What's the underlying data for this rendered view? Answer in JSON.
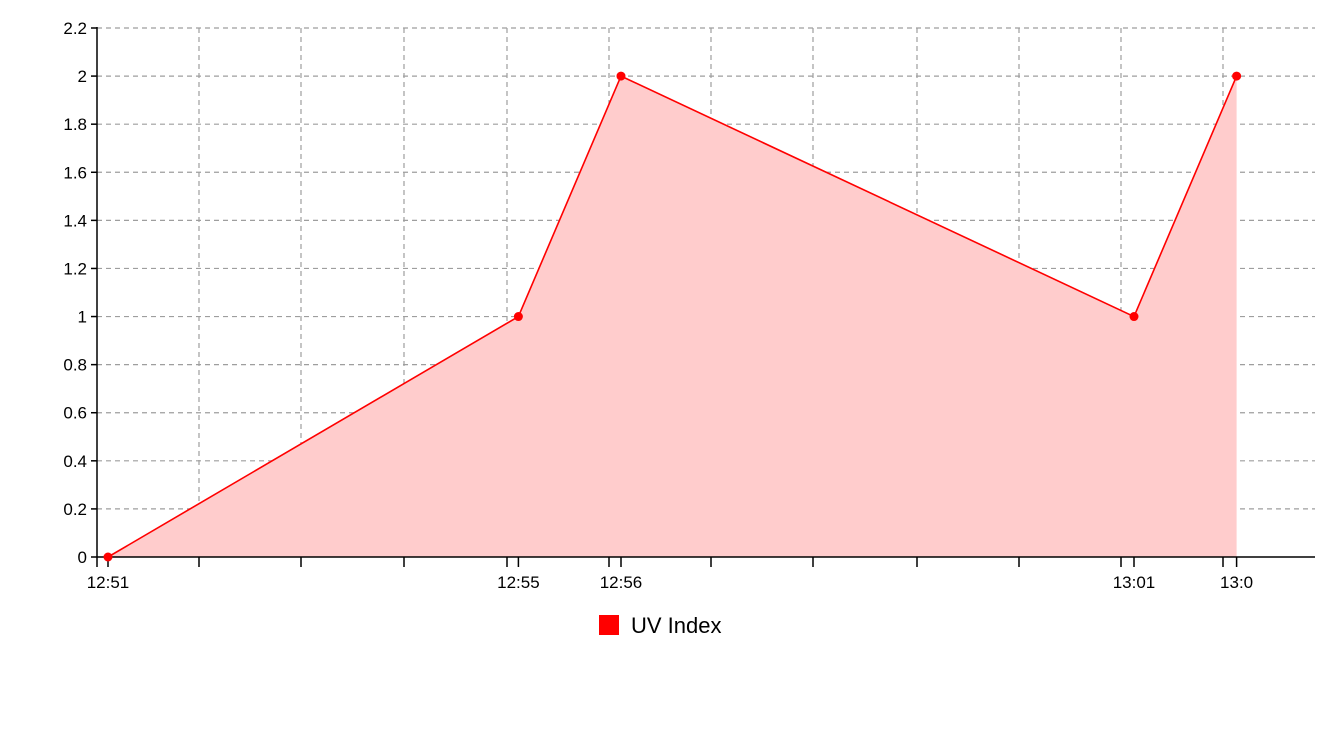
{
  "chart_data": {
    "type": "area",
    "x": [
      "12:51",
      "12:55",
      "12:56",
      "13:01",
      "13:0"
    ],
    "series": [
      {
        "name": "UV Index",
        "color": "#ff0000",
        "fill": "#ffcccc",
        "values": [
          0,
          1,
          2,
          1,
          2
        ]
      }
    ],
    "x_tick_labels": [
      "12:51",
      "12:55",
      "12:56",
      "13:01",
      "13:0"
    ],
    "y_tick_labels": [
      "0",
      "0.2",
      "0.4",
      "0.6",
      "0.8",
      "1",
      "1.2",
      "1.4",
      "1.6",
      "1.8",
      "2",
      "2.2"
    ],
    "ylim": [
      0,
      2.2
    ],
    "grid": true,
    "legend_placement": "bottom-center",
    "title": "",
    "xlabel": "",
    "ylabel": ""
  }
}
